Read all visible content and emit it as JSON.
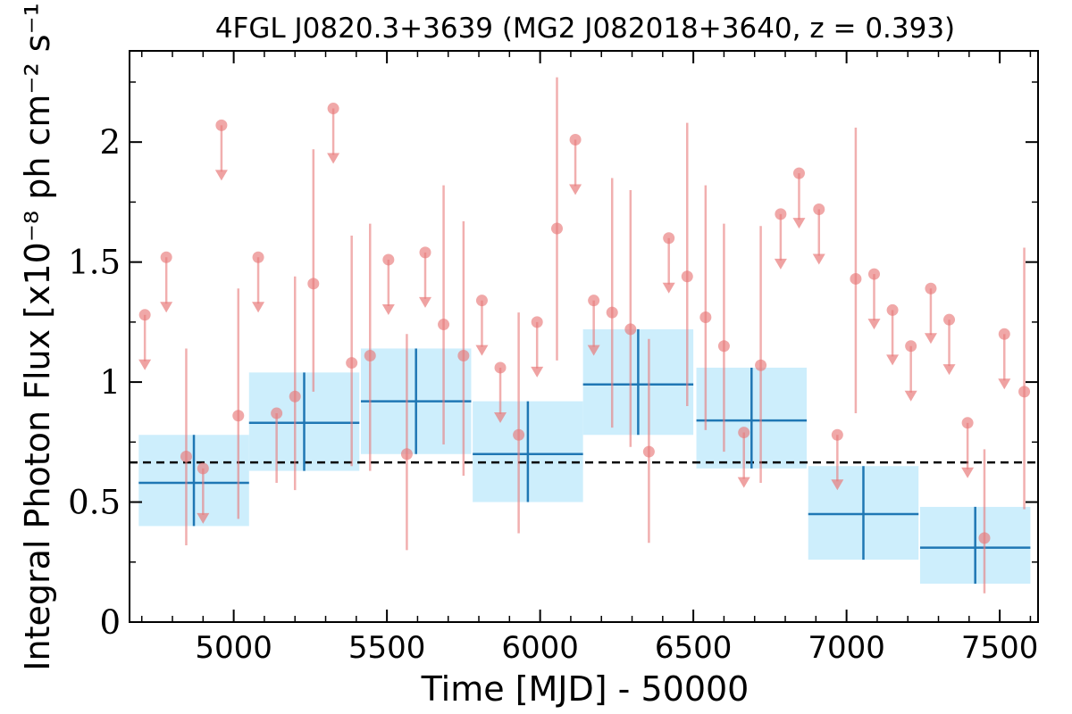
{
  "chart_data": {
    "type": "scatter",
    "title": "4FGL J0820.3+3639 (MG2 J082018+3640, z = 0.393)",
    "xlabel": "Time [MJD] - 50000",
    "ylabel": "Integral Photon Flux [x10⁻⁸ ph cm⁻² s⁻¹]",
    "xlim": [
      4660,
      7625
    ],
    "ylim": [
      0,
      2.38
    ],
    "x_ticks": [
      5000,
      5500,
      6000,
      6500,
      7000,
      7500
    ],
    "x_tick_labels": [
      "5000",
      "5500",
      "6000",
      "6500",
      "7000",
      "7500"
    ],
    "y_ticks": [
      0,
      0.5,
      1,
      1.5,
      2
    ],
    "y_tick_labels": [
      "0",
      "0.5",
      "1",
      "1.5",
      "2"
    ],
    "mean_flux": 0.665,
    "grid": false,
    "colors": {
      "long_bins": "#1f77b4",
      "long_bins_fill": "#cdeefc",
      "short_bins": "#e87a7a",
      "mean_line": "#000000"
    },
    "series": [
      {
        "kind": "long_bins",
        "points": [
          {
            "x": 4870,
            "xerr": 180,
            "y": 0.58,
            "ylo": 0.4,
            "yhi": 0.78
          },
          {
            "x": 5230,
            "xerr": 180,
            "y": 0.83,
            "ylo": 0.63,
            "yhi": 1.04
          },
          {
            "x": 5595,
            "xerr": 180,
            "y": 0.92,
            "ylo": 0.7,
            "yhi": 1.14
          },
          {
            "x": 5960,
            "xerr": 180,
            "y": 0.7,
            "ylo": 0.5,
            "yhi": 0.92
          },
          {
            "x": 6320,
            "xerr": 180,
            "y": 0.99,
            "ylo": 0.78,
            "yhi": 1.22
          },
          {
            "x": 6690,
            "xerr": 180,
            "y": 0.84,
            "ylo": 0.64,
            "yhi": 1.06
          },
          {
            "x": 7055,
            "xerr": 180,
            "y": 0.45,
            "ylo": 0.26,
            "yhi": 0.65
          },
          {
            "x": 7420,
            "xerr": 180,
            "y": 0.31,
            "ylo": 0.16,
            "yhi": 0.48
          }
        ]
      },
      {
        "kind": "short_bins",
        "detections": [
          {
            "x": 4845,
            "y": 0.69,
            "ylo": 0.32,
            "yhi": 1.14
          },
          {
            "x": 5015,
            "y": 0.86,
            "ylo": 0.43,
            "yhi": 1.39
          },
          {
            "x": 5140,
            "y": 0.87,
            "ylo": 0.58,
            "yhi": 0.87
          },
          {
            "x": 5200,
            "y": 0.94,
            "ylo": 0.55,
            "yhi": 1.44
          },
          {
            "x": 5260,
            "y": 1.41,
            "ylo": 0.96,
            "yhi": 1.97
          },
          {
            "x": 5385,
            "y": 1.08,
            "ylo": 0.65,
            "yhi": 1.61
          },
          {
            "x": 5445,
            "y": 1.11,
            "ylo": 0.63,
            "yhi": 1.66
          },
          {
            "x": 5565,
            "y": 0.7,
            "ylo": 0.3,
            "yhi": 1.2
          },
          {
            "x": 5685,
            "y": 1.24,
            "ylo": 0.74,
            "yhi": 1.82
          },
          {
            "x": 5750,
            "y": 1.11,
            "ylo": 0.61,
            "yhi": 1.67
          },
          {
            "x": 5930,
            "y": 0.78,
            "ylo": 0.37,
            "yhi": 1.29
          },
          {
            "x": 6055,
            "y": 1.64,
            "ylo": 1.09,
            "yhi": 2.27
          },
          {
            "x": 6235,
            "y": 1.29,
            "ylo": 0.81,
            "yhi": 1.85
          },
          {
            "x": 6295,
            "y": 1.22,
            "ylo": 0.73,
            "yhi": 1.8
          },
          {
            "x": 6355,
            "y": 0.71,
            "ylo": 0.33,
            "yhi": 1.18
          },
          {
            "x": 6480,
            "y": 1.44,
            "ylo": 0.9,
            "yhi": 2.08
          },
          {
            "x": 6540,
            "y": 1.27,
            "ylo": 0.8,
            "yhi": 1.82
          },
          {
            "x": 6600,
            "y": 1.15,
            "ylo": 0.71,
            "yhi": 1.66
          },
          {
            "x": 6720,
            "y": 1.07,
            "ylo": 0.58,
            "yhi": 1.65
          },
          {
            "x": 7030,
            "y": 1.43,
            "ylo": 0.87,
            "yhi": 2.06
          },
          {
            "x": 7450,
            "y": 0.35,
            "ylo": 0.12,
            "yhi": 0.72
          },
          {
            "x": 7580,
            "y": 0.96,
            "ylo": 0.47,
            "yhi": 1.56
          }
        ],
        "upper_limits": [
          {
            "x": 4710,
            "y": 1.28
          },
          {
            "x": 4780,
            "y": 1.52
          },
          {
            "x": 4900,
            "y": 0.64
          },
          {
            "x": 4960,
            "y": 2.07
          },
          {
            "x": 5080,
            "y": 1.52
          },
          {
            "x": 5325,
            "y": 2.14
          },
          {
            "x": 5505,
            "y": 1.51
          },
          {
            "x": 5625,
            "y": 1.54
          },
          {
            "x": 5810,
            "y": 1.34
          },
          {
            "x": 5870,
            "y": 1.06
          },
          {
            "x": 5990,
            "y": 1.25
          },
          {
            "x": 6115,
            "y": 2.01
          },
          {
            "x": 6175,
            "y": 1.34
          },
          {
            "x": 6420,
            "y": 1.6
          },
          {
            "x": 6665,
            "y": 0.79
          },
          {
            "x": 6785,
            "y": 1.7
          },
          {
            "x": 6845,
            "y": 1.87
          },
          {
            "x": 6910,
            "y": 1.72
          },
          {
            "x": 6970,
            "y": 0.78
          },
          {
            "x": 7090,
            "y": 1.45
          },
          {
            "x": 7150,
            "y": 1.3
          },
          {
            "x": 7210,
            "y": 1.15
          },
          {
            "x": 7275,
            "y": 1.39
          },
          {
            "x": 7335,
            "y": 1.26
          },
          {
            "x": 7395,
            "y": 0.83
          },
          {
            "x": 7515,
            "y": 1.2
          }
        ]
      }
    ]
  }
}
